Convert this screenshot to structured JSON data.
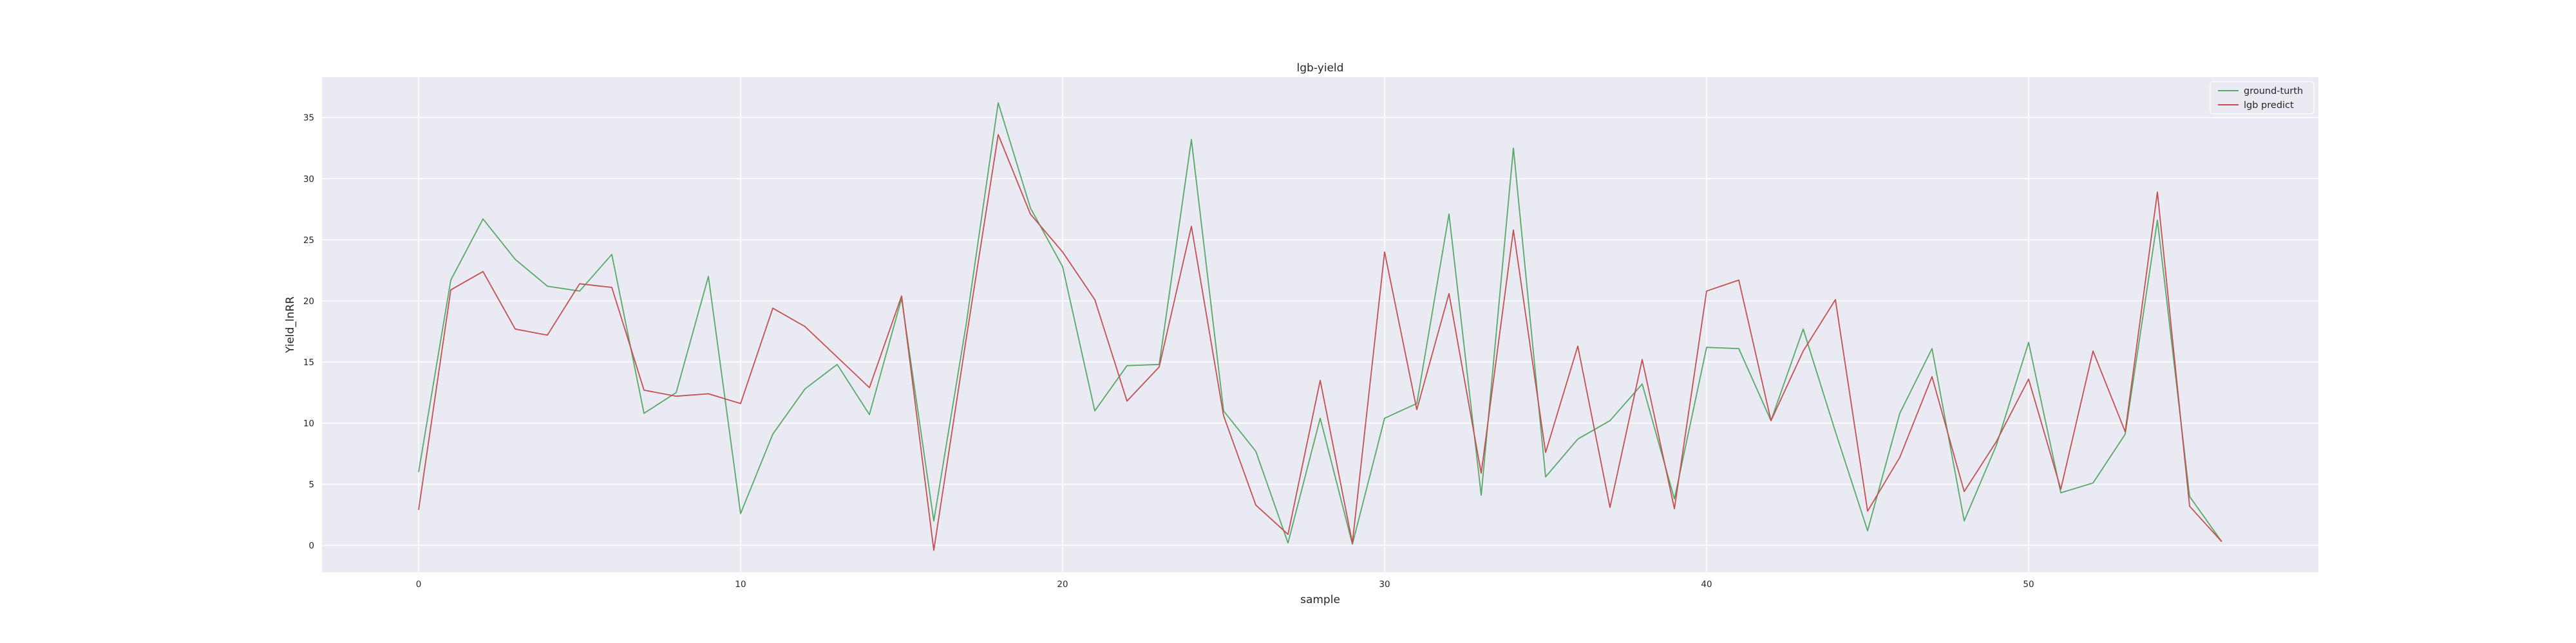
{
  "chart_data": {
    "type": "line",
    "title": "lgb-yield",
    "xlabel": "sample",
    "ylabel": "Yield_lnRR",
    "xlim": [
      -3,
      59
    ],
    "ylim": [
      -2.2,
      38.3
    ],
    "xticks": [
      0,
      10,
      20,
      30,
      40,
      50
    ],
    "yticks": [
      0,
      5,
      10,
      15,
      20,
      25,
      30,
      35
    ],
    "grid": true,
    "legend_position": "top-right",
    "x": [
      0,
      1,
      2,
      3,
      4,
      5,
      6,
      7,
      8,
      9,
      10,
      11,
      12,
      13,
      14,
      15,
      16,
      17,
      18,
      19,
      20,
      21,
      22,
      23,
      24,
      25,
      26,
      27,
      28,
      29,
      30,
      31,
      32,
      33,
      34,
      35,
      36,
      37,
      38,
      39,
      40,
      41,
      42,
      43,
      44,
      45,
      46,
      47,
      48,
      49,
      50,
      51,
      52,
      53,
      54,
      55,
      56
    ],
    "series": [
      {
        "name": "ground-turth",
        "color": "#55a868",
        "values": [
          6.0,
          21.7,
          26.7,
          23.4,
          21.2,
          20.8,
          23.8,
          10.8,
          12.5,
          22.0,
          2.6,
          9.1,
          12.8,
          14.8,
          10.7,
          20.2,
          2.0,
          18.0,
          36.2,
          27.6,
          22.8,
          11.0,
          14.7,
          14.8,
          33.2,
          11.0,
          7.7,
          0.2,
          10.4,
          0.1,
          10.4,
          11.6,
          27.1,
          4.1,
          32.5,
          5.6,
          8.7,
          10.2,
          13.2,
          3.8,
          16.2,
          16.1,
          10.2,
          17.7,
          9.3,
          1.2,
          10.8,
          16.1,
          2.0,
          8.2,
          16.6,
          4.3,
          5.1,
          9.1,
          26.6,
          4.0,
          0.3
        ]
      },
      {
        "name": "lgb predict",
        "color": "#c44e52",
        "values": [
          2.9,
          20.9,
          22.4,
          17.7,
          17.2,
          21.4,
          21.1,
          12.7,
          12.2,
          12.4,
          11.6,
          19.4,
          17.9,
          15.4,
          12.9,
          20.4,
          -0.4,
          16.8,
          33.6,
          27.1,
          24.0,
          20.1,
          11.8,
          14.6,
          26.1,
          10.6,
          3.3,
          0.9,
          13.5,
          0.2,
          24.0,
          11.1,
          20.6,
          5.9,
          25.8,
          7.6,
          16.3,
          3.1,
          15.2,
          3.0,
          20.8,
          21.7,
          10.2,
          15.9,
          20.1,
          2.8,
          7.2,
          13.8,
          4.4,
          8.5,
          13.6,
          4.6,
          15.9,
          9.3,
          28.9,
          3.2,
          0.3
        ]
      }
    ]
  }
}
